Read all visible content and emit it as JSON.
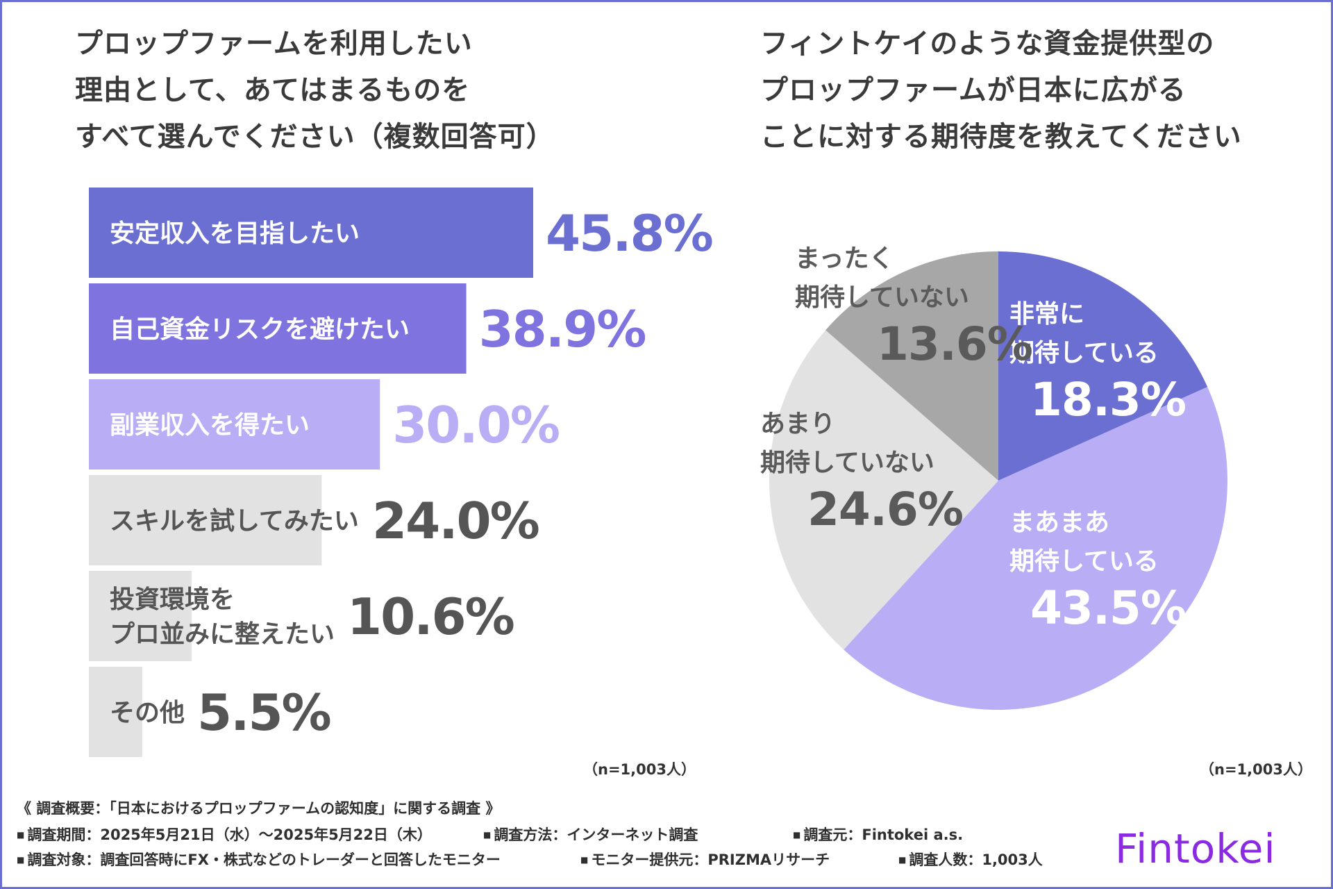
{
  "colors": {
    "frame": "#6b6fd1",
    "bars": [
      "#6b6fd1",
      "#7f73e0",
      "#b9aef6",
      "#e2e2e2",
      "#e2e2e2",
      "#e2e2e2"
    ],
    "bar_value_colors": [
      "#6b6fd1",
      "#7f73e0",
      "#b9aef6",
      "#555555",
      "#555555",
      "#555555"
    ],
    "bar_label_colors": [
      "#ffffff",
      "#ffffff",
      "#ffffff",
      "#555555",
      "#555555",
      "#555555"
    ],
    "pie": [
      "#6b6fd1",
      "#b9aef6",
      "#e2e2e2",
      "#a7a7a7"
    ],
    "logo": "#8a2be2"
  },
  "left_title": {
    "line1": "プロップファームを利用したい",
    "line2": "理由として、あてはまるものを",
    "line3": "すべて選んでください（複数回答可）"
  },
  "right_title": {
    "line1": "フィントケイのような資金提供型の",
    "line2": "プロップファームが日本に広がる",
    "line3": "ことに対する期待度を教えてください"
  },
  "chart_data": [
    {
      "type": "bar",
      "orientation": "horizontal",
      "title": "プロップファームを利用したい理由として、あてはまるものをすべて選んでください（複数回答可）",
      "categories": [
        [
          "安定収入を目指したい"
        ],
        [
          "自己資金リスクを避けたい"
        ],
        [
          "副業収入を得たい"
        ],
        [
          "スキルを試してみたい"
        ],
        [
          "投資環境を",
          "プロ並みに整えたい"
        ],
        [
          "その他"
        ]
      ],
      "values": [
        45.8,
        38.9,
        30.0,
        24.0,
        10.6,
        5.5
      ],
      "value_labels": [
        "45.8%",
        "38.9%",
        "30.0%",
        "24.0%",
        "10.6%",
        "5.5%"
      ],
      "unit": "%",
      "xlim": [
        0,
        100
      ],
      "note": "（n=1,003人）"
    },
    {
      "type": "pie",
      "title": "フィントケイのような資金提供型のプロップファームが日本に広がることに対する期待度を教えてください",
      "labels": [
        [
          "非常に",
          "期待している"
        ],
        [
          "まあまあ",
          "期待している"
        ],
        [
          "あまり",
          "期待していない"
        ],
        [
          "まったく",
          "期待していない"
        ]
      ],
      "values": [
        18.3,
        43.5,
        24.6,
        13.6
      ],
      "value_labels": [
        "18.3%",
        "43.5%",
        "24.6%",
        "13.6%"
      ],
      "note": "（n=1,003人）"
    }
  ],
  "survey": {
    "heading": "《 調査概要：「日本におけるプロップファームの認知度」に関する調査 》",
    "period": "調査期間：2025年5月21日（水）～2025年5月22日（木）",
    "method": "調査方法：インターネット調査",
    "source": "調査元：Fintokei a.s.",
    "target": "調査対象：調査回答時にFX・株式などのトレーダーと回答したモニター",
    "monitor": "モニター提供元：PRIZMAリサーチ",
    "count": "調査人数：1,003人"
  },
  "logo": "Fintokei"
}
